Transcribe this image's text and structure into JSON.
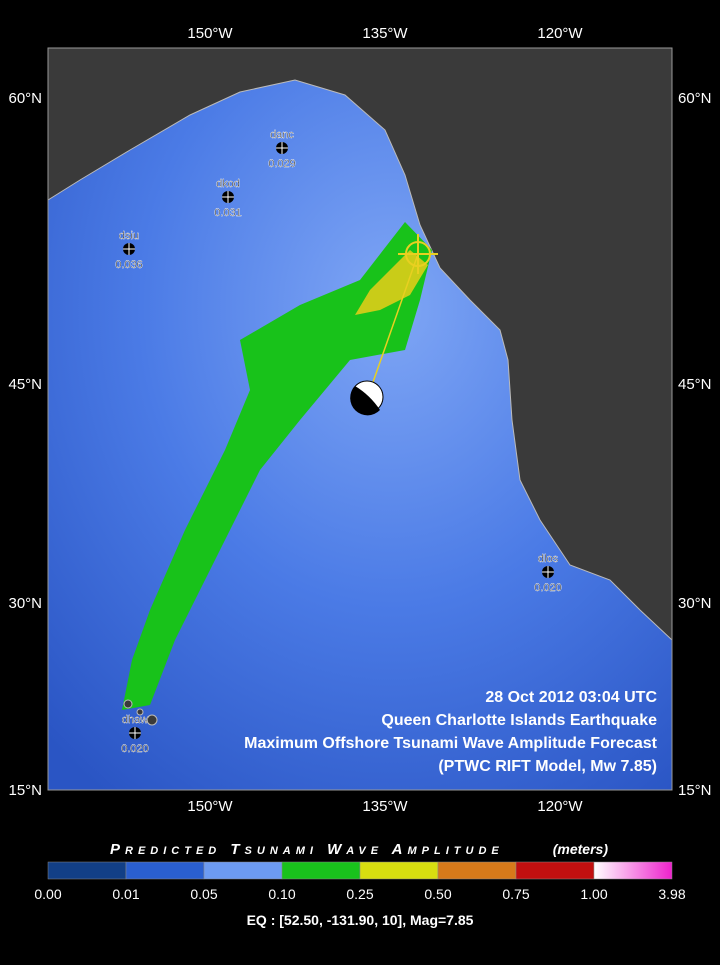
{
  "map": {
    "lon_labels": [
      "150°W",
      "135°W",
      "120°W"
    ],
    "lat_labels": [
      "60°N",
      "45°N",
      "30°N",
      "15°N"
    ],
    "stations": [
      {
        "id": "danc",
        "value": "0.029"
      },
      {
        "id": "dkod",
        "value": "0.031"
      },
      {
        "id": "dsiu",
        "value": "0.036"
      },
      {
        "id": "dlos",
        "value": "0.020"
      },
      {
        "id": "dhaw",
        "value": "0.020"
      }
    ],
    "caption": [
      "28 Oct 2012 03:04 UTC",
      "Queen Charlotte Islands Earthquake",
      "Maximum Offshore Tsunami Wave Amplitude Forecast",
      "(PTWC RIFT Model, Mw 7.85)"
    ]
  },
  "legend": {
    "title": "Predicted Tsunami Wave Amplitude",
    "units": "(meters)",
    "ticks": [
      "0.00",
      "0.01",
      "0.05",
      "0.10",
      "0.25",
      "0.50",
      "0.75",
      "1.00",
      "3.98"
    ],
    "colors": [
      "#123f86",
      "#2a5fd0",
      "#6d9bf2",
      "#19c21c",
      "#d8de10",
      "#d77a1a",
      "#c21010",
      "#f070e0"
    ]
  },
  "footer": "EQ : [52.50, -131.90, 10], Mag=7.85"
}
